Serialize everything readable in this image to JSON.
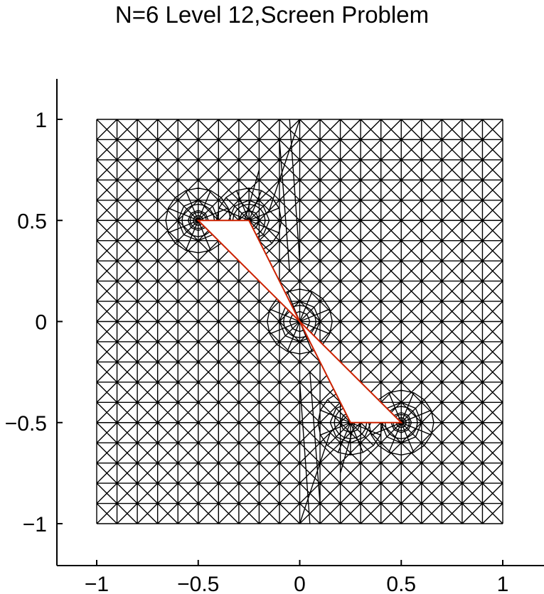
{
  "chart_data": {
    "type": "mesh",
    "title": "N=6 Level 12,Screen Problem",
    "xlim": [
      -1.2,
      1.2
    ],
    "ylim": [
      -1.2,
      1.2
    ],
    "x_ticks": [
      -1,
      -0.5,
      0,
      0.5,
      1
    ],
    "y_ticks": [
      -1,
      -0.5,
      0,
      0.5,
      1
    ],
    "x_tick_labels": [
      "−1",
      "−0.5",
      "0",
      "0.5",
      "1"
    ],
    "y_tick_labels": [
      "−1",
      "−0.5",
      "0",
      "0.5",
      "1"
    ],
    "domain": {
      "x": [
        -1,
        1
      ],
      "y": [
        -1,
        1
      ]
    },
    "grid_spacing": 0.1,
    "refinement_points": [
      {
        "x": -0.5,
        "y": 0.5,
        "level": 3
      },
      {
        "x": -0.25,
        "y": 0.5,
        "level": 2
      },
      {
        "x": 0,
        "y": 0,
        "level": 2
      },
      {
        "x": 0.25,
        "y": -0.5,
        "level": 2
      },
      {
        "x": 0.5,
        "y": -0.5,
        "level": 3
      }
    ],
    "screen_polygons": [
      [
        [
          -0.5,
          0.5
        ],
        [
          -0.25,
          0.5
        ],
        [
          0,
          0
        ]
      ],
      [
        [
          0,
          0
        ],
        [
          0.25,
          -0.5
        ],
        [
          0.5,
          -0.5
        ]
      ]
    ],
    "mesh_color": "#000000",
    "screen_color": "#cc2200"
  }
}
